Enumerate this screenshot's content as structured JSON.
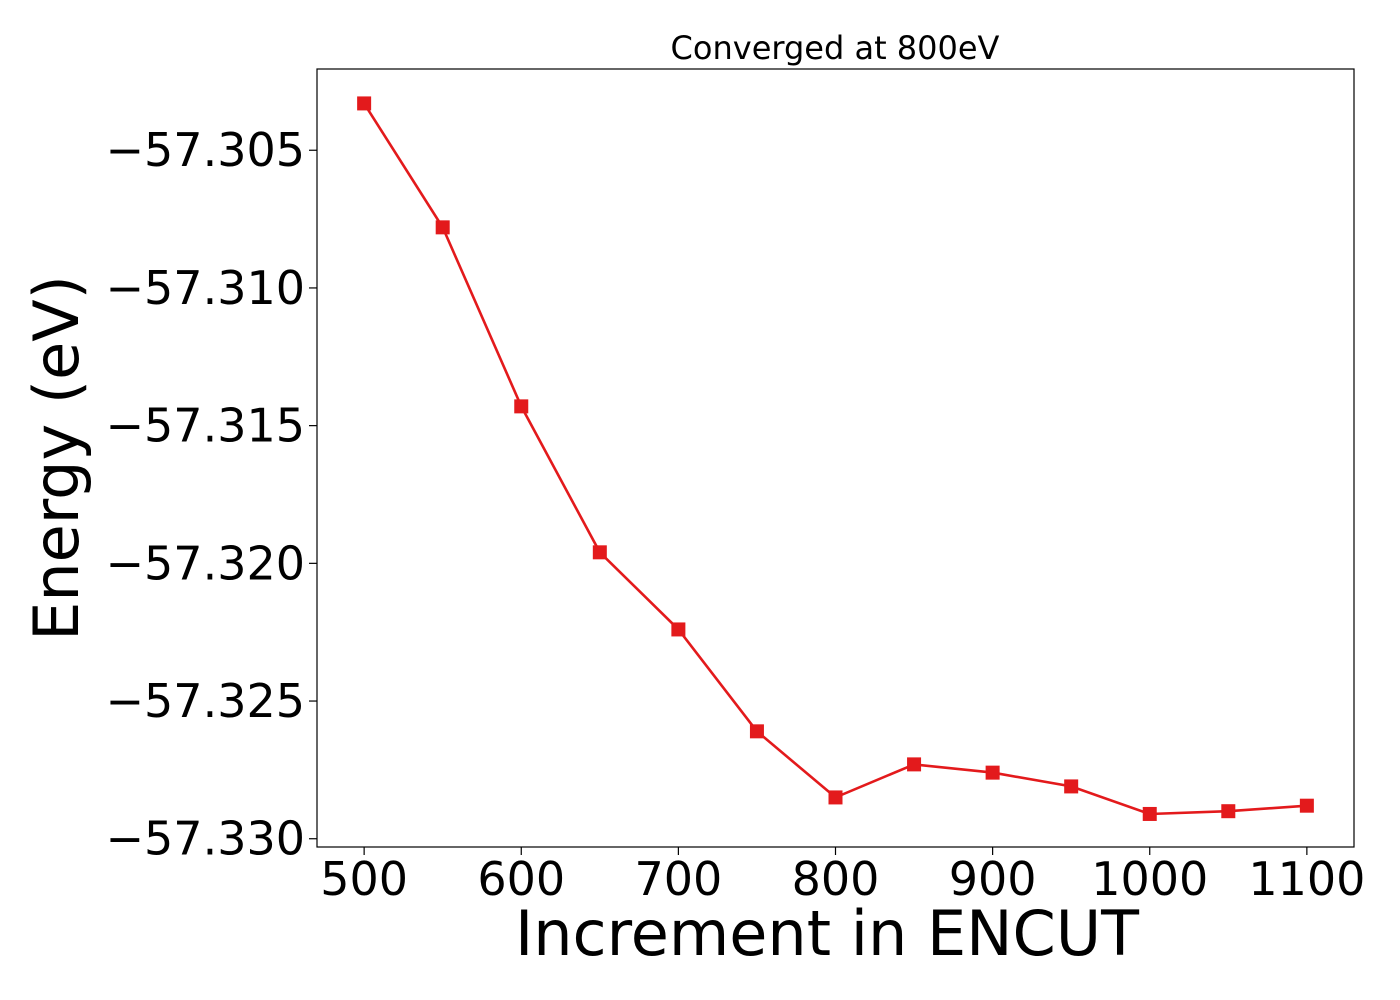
{
  "chart_data": {
    "type": "line",
    "title": "Converged at 800eV",
    "xlabel": "Increment in ENCUT",
    "ylabel": "Energy (eV)",
    "x": [
      500,
      550,
      600,
      650,
      700,
      750,
      800,
      850,
      900,
      950,
      1000,
      1050,
      1100
    ],
    "series": [
      {
        "values": [
          -57.3033,
          -57.3078,
          -57.3143,
          -57.3196,
          -57.3224,
          -57.3261,
          -57.3285,
          -57.3273,
          -57.3276,
          -57.3281,
          -57.3291,
          -57.329,
          -57.3288
        ],
        "color": "#e31a1c",
        "marker": "square"
      }
    ],
    "xlim": [
      470,
      1130
    ],
    "ylim": [
      -57.3303,
      -57.30205
    ],
    "xticks": [
      500,
      600,
      700,
      800,
      900,
      1000,
      1100
    ],
    "xtick_labels": [
      "500",
      "600",
      "700",
      "800",
      "900",
      "1000",
      "1100"
    ],
    "yticks": [
      -57.305,
      -57.31,
      -57.315,
      -57.32,
      -57.325,
      -57.33
    ],
    "ytick_labels": [
      "−57.305",
      "−57.310",
      "−57.315",
      "−57.320",
      "−57.325",
      "−57.330"
    ],
    "grid": false,
    "legend": "none"
  }
}
